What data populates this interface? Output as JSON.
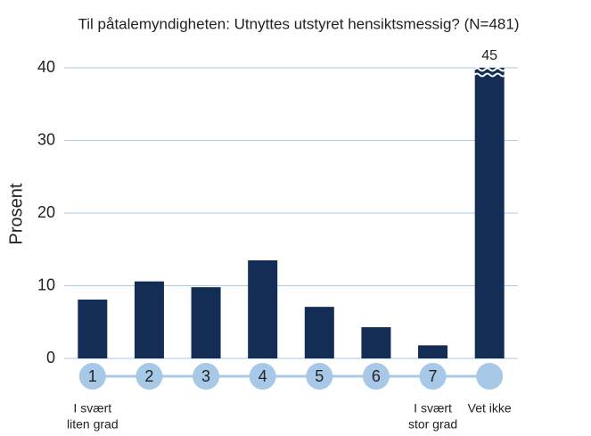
{
  "chart_data": {
    "type": "bar",
    "title": "Til påtalemyndigheten: Utnyttes utstyret hensiktsmessig? (N=481)",
    "y_label": "Prosent",
    "categories": [
      "1",
      "2",
      "3",
      "4",
      "5",
      "6",
      "7",
      null
    ],
    "category_notes": [
      [
        "I svært",
        "liten grad"
      ],
      null,
      null,
      null,
      null,
      null,
      [
        "I svært",
        "stor grad"
      ],
      [
        "Vet ikke"
      ]
    ],
    "values": [
      8.1,
      10.6,
      9.8,
      13.5,
      7.1,
      4.3,
      1.8,
      45
    ],
    "color": "#142d55",
    "marker_color": "#a8c8e8",
    "grid_color": "#a9c9e6",
    "ylim": [
      0,
      40
    ],
    "yticks": [
      0,
      10,
      20,
      30,
      40
    ],
    "grid": true
  }
}
